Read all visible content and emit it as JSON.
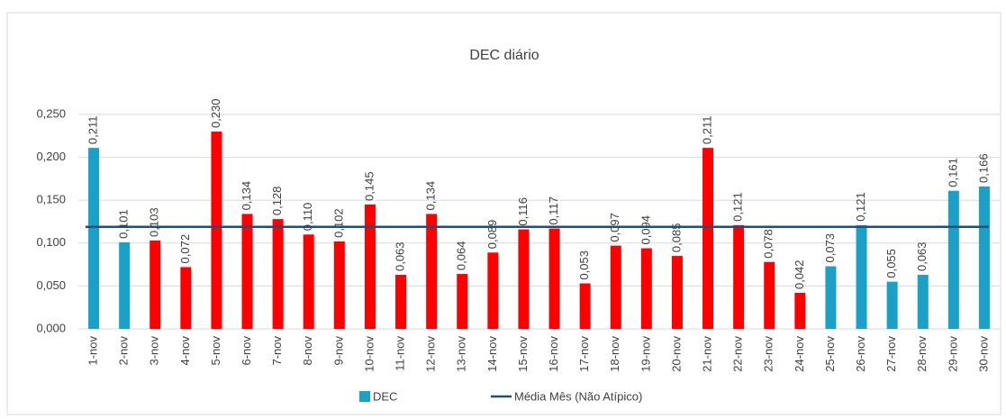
{
  "chart_data": {
    "type": "bar",
    "title": "DEC diário",
    "categories": [
      "1-nov",
      "2-nov",
      "3-nov",
      "4-nov",
      "5-nov",
      "6-nov",
      "7-nov",
      "8-nov",
      "9-nov",
      "10-nov",
      "11-nov",
      "12-nov",
      "13-nov",
      "14-nov",
      "15-nov",
      "16-nov",
      "17-nov",
      "18-nov",
      "19-nov",
      "20-nov",
      "21-nov",
      "22-nov",
      "23-nov",
      "24-nov",
      "25-nov",
      "26-nov",
      "27-nov",
      "28-nov",
      "29-nov",
      "30-nov"
    ],
    "series": [
      {
        "name": "DEC",
        "color": "#1ba1c7",
        "colors": [
          "#1ba1c7",
          "#1ba1c7",
          "#ff0000",
          "#ff0000",
          "#ff0000",
          "#ff0000",
          "#ff0000",
          "#ff0000",
          "#ff0000",
          "#ff0000",
          "#ff0000",
          "#ff0000",
          "#ff0000",
          "#ff0000",
          "#ff0000",
          "#ff0000",
          "#ff0000",
          "#ff0000",
          "#ff0000",
          "#ff0000",
          "#ff0000",
          "#ff0000",
          "#ff0000",
          "#ff0000",
          "#1ba1c7",
          "#1ba1c7",
          "#1ba1c7",
          "#1ba1c7",
          "#1ba1c7",
          "#1ba1c7"
        ],
        "values": [
          0.211,
          0.101,
          0.103,
          0.072,
          0.23,
          0.134,
          0.128,
          0.11,
          0.102,
          0.145,
          0.063,
          0.134,
          0.064,
          0.089,
          0.116,
          0.117,
          0.053,
          0.097,
          0.094,
          0.085,
          0.211,
          0.121,
          0.078,
          0.042,
          0.073,
          0.121,
          0.055,
          0.063,
          0.161,
          0.166
        ],
        "value_labels": [
          "0,211",
          "0,101",
          "0,103",
          "0,072",
          "0,230",
          "0,134",
          "0,128",
          "0,110",
          "0,102",
          "0,145",
          "0,063",
          "0,134",
          "0,064",
          "0,089",
          "0,116",
          "0,117",
          "0,053",
          "0,097",
          "0,094",
          "0,085",
          "0,211",
          "0,121",
          "0,078",
          "0,042",
          "0,073",
          "0,121",
          "0,055",
          "0,063",
          "0,161",
          "0,166"
        ]
      },
      {
        "name": "Média Mês (Não Atípico)",
        "type": "line",
        "color": "#1f4e79",
        "value": 0.119
      }
    ],
    "ylim": [
      0,
      0.25
    ],
    "yticks": [
      {
        "value": 0,
        "label": "0,000"
      },
      {
        "value": 0.05,
        "label": "0,050"
      },
      {
        "value": 0.1,
        "label": "0,100"
      },
      {
        "value": 0.15,
        "label": "0,150"
      },
      {
        "value": 0.2,
        "label": "0,200"
      },
      {
        "value": 0.25,
        "label": "0,250"
      }
    ],
    "grid": true
  }
}
